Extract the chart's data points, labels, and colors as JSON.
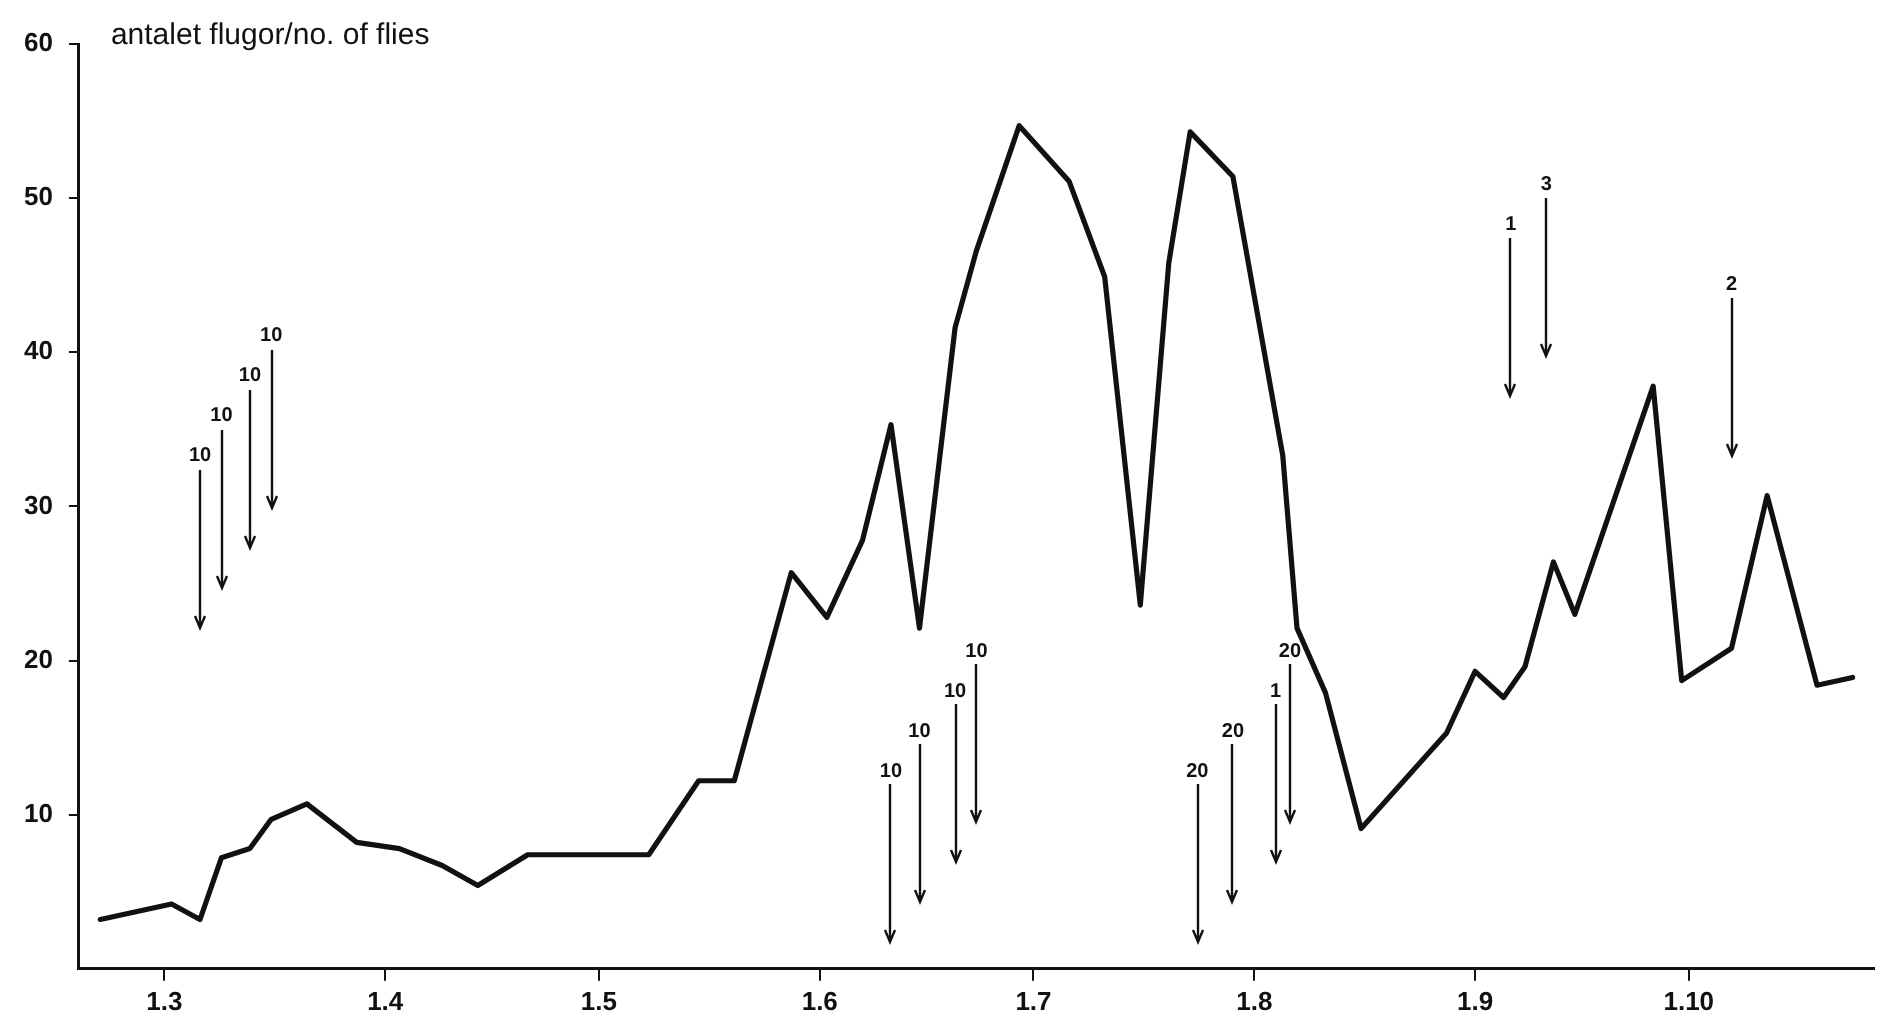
{
  "chart_data": {
    "type": "line",
    "ylabel": "antalet flugor/no. of flies",
    "x": [
      "--02-20",
      "--03-02",
      "--03-06",
      "--03-09",
      "--03-13",
      "--03-16",
      "--03-21",
      "--03-28",
      "--04-03",
      "--04-09",
      "--04-14",
      "--04-21",
      "--05-08",
      "--05-15",
      "--05-20",
      "--05-28",
      "--06-02",
      "--06-07",
      "--06-11",
      "--06-15",
      "--06-20",
      "--06-23",
      "--06-29",
      "--07-06",
      "--07-11",
      "--07-16",
      "--07-20",
      "--07-23",
      "--07-29",
      "--08-05",
      "--08-07",
      "--08-11",
      "--08-16",
      "--08-28",
      "--09-01",
      "--09-05",
      "--09-08",
      "--09-12",
      "--09-15",
      "--09-26",
      "--09-30",
      "--10-07",
      "--10-12",
      "--10-19",
      "--10-24"
    ],
    "series": [
      {
        "color": "#111111",
        "values": [
          3.2,
          4.2,
          3.2,
          7.2,
          7.8,
          9.7,
          10.7,
          8.2,
          7.8,
          6.7,
          5.4,
          7.4,
          7.4,
          12.2,
          12.2,
          25.7,
          22.8,
          27.8,
          35.3,
          22.1,
          41.6,
          46.6,
          54.7,
          51.1,
          44.9,
          23.6,
          45.8,
          54.3,
          51.4,
          33.3,
          22.1,
          17.9,
          9.1,
          15.3,
          19.3,
          17.6,
          19.6,
          26.4,
          23.0,
          37.8,
          18.7,
          20.8,
          30.7,
          18.4,
          18.9
        ]
      }
    ],
    "xlim": [
      "--02-17",
      "--10-27"
    ],
    "xticks": [
      {
        "value": "--03-01",
        "label": "1.3"
      },
      {
        "value": "--04-01",
        "label": "1.4"
      },
      {
        "value": "--05-01",
        "label": "1.5"
      },
      {
        "value": "--06-01",
        "label": "1.6"
      },
      {
        "value": "--07-01",
        "label": "1.7"
      },
      {
        "value": "--08-01",
        "label": "1.8"
      },
      {
        "value": "--09-01",
        "label": "1.9"
      },
      {
        "value": "--10-01",
        "label": "1.10"
      }
    ],
    "ylim": [
      0,
      60
    ],
    "yticks": [
      10,
      20,
      30,
      40,
      50,
      60
    ],
    "grid": false,
    "legend": false,
    "marker": "none",
    "line_style": "solid",
    "ref_lines": [
      {
        "axis": "x",
        "value": "--03-06",
        "label": "10"
      },
      {
        "axis": "x",
        "value": "--03-09",
        "label": "10"
      },
      {
        "axis": "x",
        "value": "--03-13",
        "label": "10"
      },
      {
        "axis": "x",
        "value": "--03-16",
        "label": "10"
      },
      {
        "axis": "x",
        "value": "--06-11",
        "label": "10"
      },
      {
        "axis": "x",
        "value": "--06-15",
        "label": "10"
      },
      {
        "axis": "x",
        "value": "--06-20",
        "label": "10"
      },
      {
        "axis": "x",
        "value": "--06-23",
        "label": "10"
      },
      {
        "axis": "x",
        "value": "--07-24",
        "label": "20"
      },
      {
        "axis": "x",
        "value": "--07-29",
        "label": "20"
      },
      {
        "axis": "x",
        "value": "--08-04",
        "label": "1"
      },
      {
        "axis": "x",
        "value": "--08-06",
        "label": "20"
      },
      {
        "axis": "x",
        "value": "--09-06",
        "label": "1"
      },
      {
        "axis": "x",
        "value": "--09-11",
        "label": "3"
      },
      {
        "axis": "x",
        "value": "--10-07",
        "label": "2"
      }
    ]
  }
}
